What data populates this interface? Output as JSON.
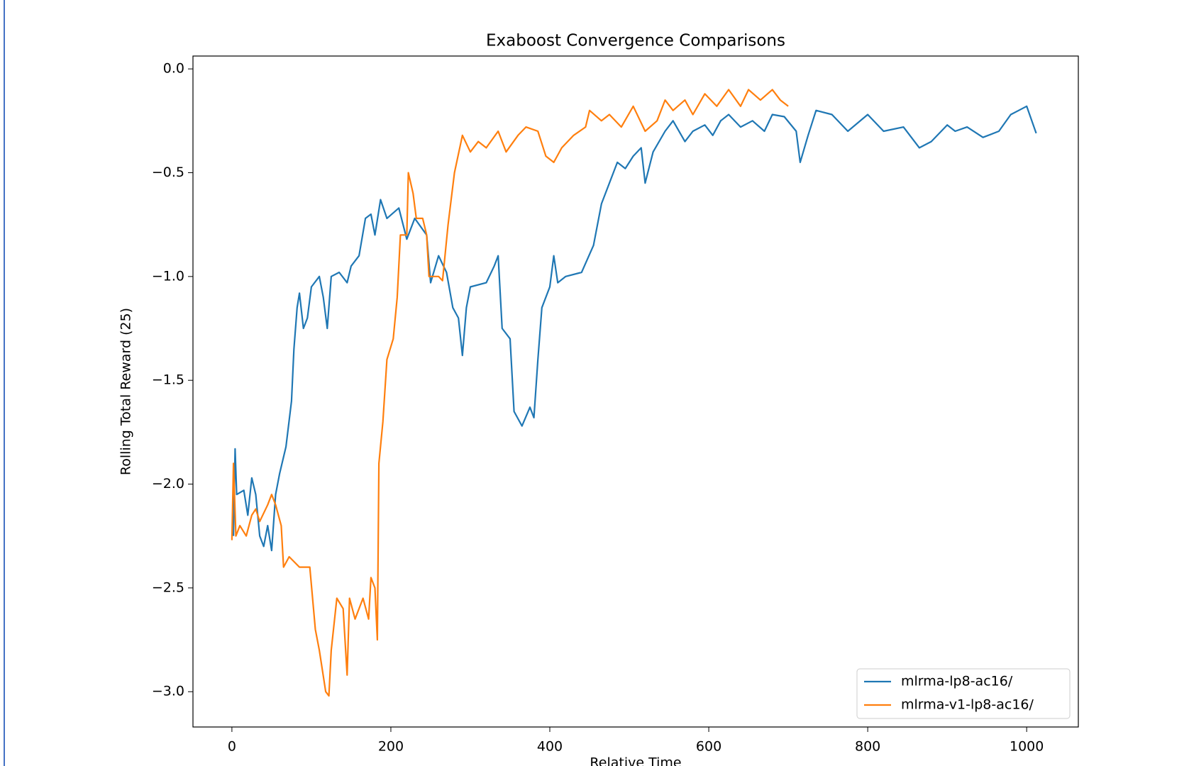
{
  "chart_data": {
    "type": "line",
    "title": "Exaboost Convergence Comparisons",
    "xlabel": "Relative Time",
    "ylabel": "Rolling Total Reward (25)",
    "xlim": [
      -49,
      1065
    ],
    "ylim": [
      -3.17,
      0.062
    ],
    "xticks": [
      0,
      200,
      400,
      600,
      800,
      1000
    ],
    "yticks": [
      {
        "value": 0.0,
        "label": "0.0"
      },
      {
        "value": -0.5,
        "label": "−0.5"
      },
      {
        "value": -1.0,
        "label": "−1.0"
      },
      {
        "value": -1.5,
        "label": "−1.5"
      },
      {
        "value": -2.0,
        "label": "−2.0"
      },
      {
        "value": -2.5,
        "label": "−2.5"
      },
      {
        "value": -3.0,
        "label": "−3.0"
      }
    ],
    "legend": "lower right",
    "grid": false,
    "series": [
      {
        "name": "mlrma-lp8-ac16/",
        "color": "#1f77b4",
        "x": [
          2,
          4,
          6,
          15,
          20,
          25,
          30,
          35,
          40,
          45,
          50,
          55,
          60,
          68,
          75,
          78,
          82,
          85,
          90,
          95,
          100,
          110,
          115,
          120,
          125,
          135,
          145,
          150,
          160,
          168,
          175,
          180,
          187,
          195,
          210,
          220,
          230,
          245,
          250,
          260,
          270,
          278,
          285,
          290,
          295,
          300,
          320,
          330,
          335,
          340,
          350,
          355,
          365,
          375,
          380,
          385,
          390,
          400,
          405,
          410,
          420,
          440,
          455,
          465,
          475,
          485,
          495,
          505,
          515,
          520,
          530,
          545,
          555,
          570,
          580,
          595,
          605,
          615,
          625,
          640,
          655,
          670,
          680,
          695,
          710,
          715,
          725,
          735,
          755,
          775,
          800,
          820,
          845,
          865,
          880,
          900,
          910,
          925,
          945,
          965,
          980,
          990,
          1000,
          1012
        ],
        "values": [
          -2.25,
          -1.83,
          -2.05,
          -2.03,
          -2.15,
          -1.97,
          -2.05,
          -2.25,
          -2.3,
          -2.2,
          -2.32,
          -2.05,
          -1.95,
          -1.82,
          -1.6,
          -1.35,
          -1.15,
          -1.08,
          -1.25,
          -1.2,
          -1.05,
          -1.0,
          -1.1,
          -1.25,
          -1.0,
          -0.98,
          -1.03,
          -0.95,
          -0.9,
          -0.72,
          -0.7,
          -0.8,
          -0.63,
          -0.72,
          -0.67,
          -0.82,
          -0.72,
          -0.8,
          -1.03,
          -0.9,
          -0.98,
          -1.15,
          -1.2,
          -1.38,
          -1.15,
          -1.05,
          -1.03,
          -0.95,
          -0.9,
          -1.25,
          -1.3,
          -1.65,
          -1.72,
          -1.63,
          -1.68,
          -1.4,
          -1.15,
          -1.05,
          -0.9,
          -1.03,
          -1.0,
          -0.98,
          -0.85,
          -0.65,
          -0.55,
          -0.45,
          -0.48,
          -0.42,
          -0.38,
          -0.55,
          -0.4,
          -0.3,
          -0.25,
          -0.35,
          -0.3,
          -0.27,
          -0.32,
          -0.25,
          -0.22,
          -0.28,
          -0.25,
          -0.3,
          -0.22,
          -0.23,
          -0.3,
          -0.45,
          -0.32,
          -0.2,
          -0.22,
          -0.3,
          -0.22,
          -0.3,
          -0.28,
          -0.38,
          -0.35,
          -0.27,
          -0.3,
          -0.28,
          -0.33,
          -0.3,
          -0.22,
          -0.2,
          -0.18,
          -0.31
        ]
      },
      {
        "name": "mlrma-v1-lp8-ac16/",
        "color": "#ff7f0e",
        "x": [
          0,
          2,
          5,
          10,
          18,
          25,
          30,
          35,
          45,
          50,
          55,
          62,
          65,
          72,
          85,
          98,
          105,
          110,
          118,
          122,
          125,
          132,
          140,
          145,
          148,
          155,
          165,
          172,
          175,
          180,
          183,
          185,
          190,
          195,
          203,
          208,
          212,
          220,
          222,
          228,
          232,
          240,
          245,
          248,
          260,
          265,
          272,
          280,
          290,
          300,
          310,
          320,
          335,
          345,
          360,
          370,
          385,
          395,
          405,
          415,
          430,
          445,
          450,
          465,
          475,
          490,
          505,
          520,
          535,
          545,
          555,
          570,
          580,
          595,
          610,
          625,
          640,
          650,
          665,
          680,
          690,
          700
        ],
        "values": [
          -2.27,
          -1.9,
          -2.25,
          -2.2,
          -2.25,
          -2.15,
          -2.12,
          -2.18,
          -2.1,
          -2.05,
          -2.1,
          -2.2,
          -2.4,
          -2.35,
          -2.4,
          -2.4,
          -2.7,
          -2.8,
          -3.0,
          -3.02,
          -2.8,
          -2.55,
          -2.6,
          -2.92,
          -2.55,
          -2.65,
          -2.55,
          -2.65,
          -2.45,
          -2.5,
          -2.75,
          -1.9,
          -1.7,
          -1.4,
          -1.3,
          -1.1,
          -0.8,
          -0.8,
          -0.5,
          -0.6,
          -0.72,
          -0.72,
          -0.8,
          -1.0,
          -1.0,
          -1.02,
          -0.75,
          -0.5,
          -0.32,
          -0.4,
          -0.35,
          -0.38,
          -0.3,
          -0.4,
          -0.32,
          -0.28,
          -0.3,
          -0.42,
          -0.45,
          -0.38,
          -0.32,
          -0.28,
          -0.2,
          -0.25,
          -0.22,
          -0.28,
          -0.18,
          -0.3,
          -0.25,
          -0.15,
          -0.2,
          -0.15,
          -0.22,
          -0.12,
          -0.18,
          -0.1,
          -0.18,
          -0.1,
          -0.15,
          -0.1,
          -0.15,
          -0.18
        ]
      }
    ]
  }
}
